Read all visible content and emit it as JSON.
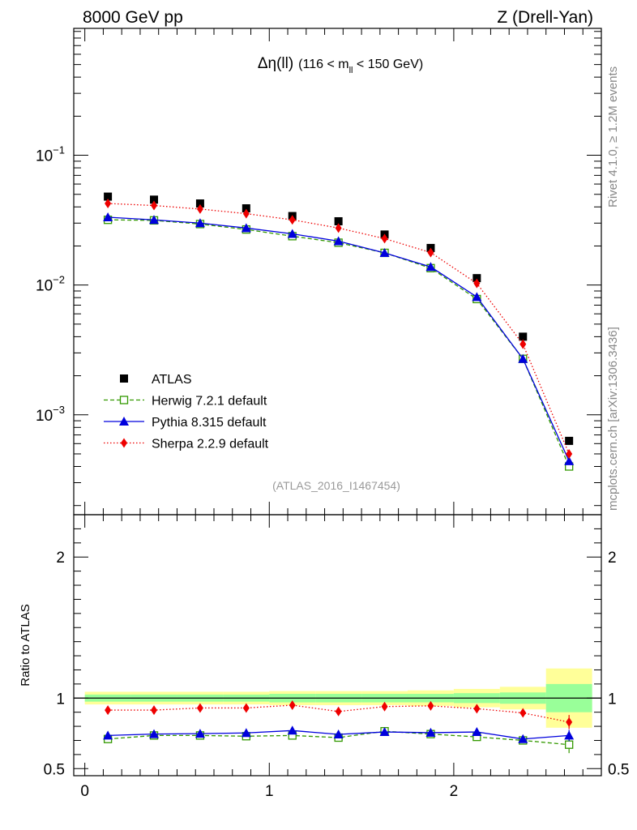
{
  "header": {
    "left": "8000 GeV pp",
    "right": "Z (Drell-Yan)"
  },
  "side_labels": {
    "rivet": "Rivet 4.1.0, ≥ 1.2M events",
    "mcplots": "mcplots.cern.ch [arXiv:1306.3436]"
  },
  "chart_data": {
    "type": "scatter",
    "title": "Δη(ll) (116 < m_ll < 150 GeV)",
    "title_parts": {
      "delta": "Δη(ll)",
      "range_a": "(116 < m",
      "sub": "ll",
      "range_b": " < 150 GeV)"
    },
    "watermark": "(ATLAS_2016_I1467454)",
    "x": [
      0.125,
      0.375,
      0.625,
      0.875,
      1.125,
      1.375,
      1.625,
      1.875,
      2.125,
      2.375,
      2.625
    ],
    "bin_edges": [
      0,
      0.25,
      0.5,
      0.75,
      1.0,
      1.25,
      1.5,
      1.75,
      2.0,
      2.25,
      2.5,
      2.75
    ],
    "xlim": [
      -0.06,
      2.8
    ],
    "xticks": [
      0,
      1,
      2
    ],
    "xtick_labels": [
      "0",
      "1",
      "2"
    ],
    "yscale": "log",
    "ylim": [
      0.00017,
      0.95
    ],
    "ytick_labels": [
      {
        "value": 0.1,
        "base": "10",
        "exp": "−1"
      },
      {
        "value": 0.01,
        "base": "10",
        "exp": "−2"
      },
      {
        "value": 0.001,
        "base": "10",
        "exp": "−3"
      }
    ],
    "series": [
      {
        "name": "ATLAS",
        "marker": "square",
        "color": "#000000",
        "values": [
          0.048,
          0.0455,
          0.0425,
          0.039,
          0.034,
          0.031,
          0.0245,
          0.0193,
          0.0113,
          0.004,
          0.00063
        ]
      },
      {
        "name": "Herwig 7.2.1 default",
        "marker": "open-square",
        "color": "#339900",
        "dash": "5,3",
        "values": [
          0.0318,
          0.0315,
          0.0295,
          0.0268,
          0.0238,
          0.0212,
          0.0177,
          0.0135,
          0.0078,
          0.0027,
          0.0004
        ]
      },
      {
        "name": "Pythia 8.315 default",
        "marker": "triangle",
        "color": "#0000dd",
        "dash": "",
        "values": [
          0.0333,
          0.0318,
          0.03,
          0.0275,
          0.0248,
          0.0218,
          0.0177,
          0.0138,
          0.0081,
          0.0027,
          0.00044
        ]
      },
      {
        "name": "Sherpa 2.2.9 default",
        "marker": "diamond",
        "color": "#ee0000",
        "dash": "1.5,2.5",
        "values": [
          0.0425,
          0.041,
          0.0385,
          0.0355,
          0.0318,
          0.0275,
          0.0228,
          0.0178,
          0.0103,
          0.0035,
          0.0005
        ]
      }
    ],
    "ratio": {
      "ylabel": "Ratio to ATLAS",
      "ylim": [
        0.45,
        2.3
      ],
      "yticks": [
        0.5,
        1,
        2
      ],
      "ytick_labels": [
        "0.5",
        "1",
        "2"
      ],
      "green_band": [
        0.025,
        0.025,
        0.025,
        0.025,
        0.03,
        0.03,
        0.03,
        0.03,
        0.035,
        0.04,
        0.1
      ],
      "yellow_band": [
        0.045,
        0.045,
        0.045,
        0.045,
        0.05,
        0.05,
        0.05,
        0.055,
        0.065,
        0.08,
        0.21
      ],
      "series": [
        {
          "name": "Herwig 7.2.1 default",
          "values": [
            0.71,
            0.735,
            0.735,
            0.73,
            0.735,
            0.72,
            0.765,
            0.745,
            0.725,
            0.7,
            0.67
          ],
          "errors": [
            0,
            0,
            0,
            0,
            0,
            0,
            0,
            0,
            0,
            0.02,
            0.06
          ]
        },
        {
          "name": "Pythia 8.315 default",
          "values": [
            0.735,
            0.745,
            0.748,
            0.753,
            0.77,
            0.743,
            0.76,
            0.755,
            0.76,
            0.71,
            0.735
          ],
          "errors": [
            0,
            0,
            0,
            0,
            0,
            0,
            0,
            0,
            0,
            0.02,
            0.04
          ]
        },
        {
          "name": "Sherpa 2.2.9 default",
          "values": [
            0.915,
            0.915,
            0.93,
            0.93,
            0.95,
            0.905,
            0.94,
            0.945,
            0.925,
            0.895,
            0.83
          ],
          "errors": [
            0,
            0,
            0,
            0,
            0,
            0,
            0,
            0,
            0,
            0.025,
            0.05
          ]
        }
      ]
    }
  }
}
